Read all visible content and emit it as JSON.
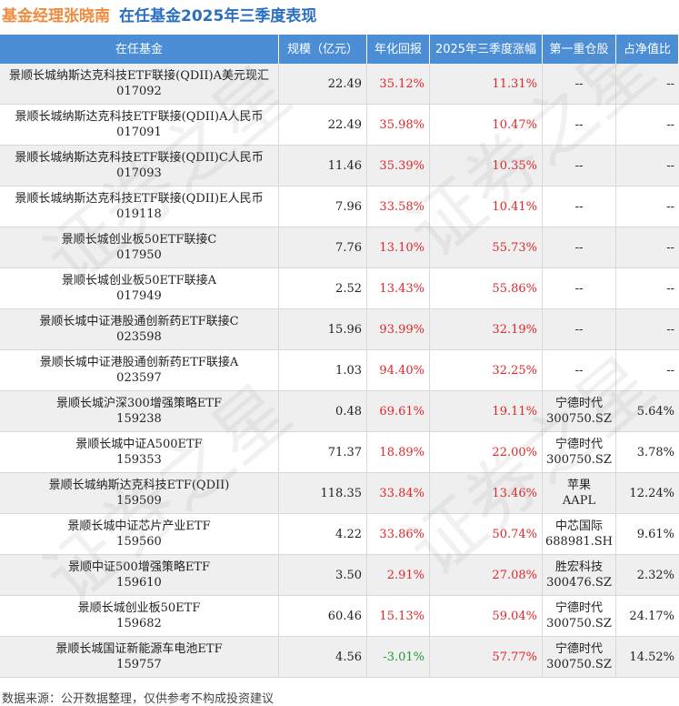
{
  "header": {
    "manager": "基金经理张晓南",
    "title": "在任基金2025年三季度表现"
  },
  "watermark": "证券之星",
  "table": {
    "columns": [
      "在任基金",
      "规模（亿元）",
      "年化回报",
      "2025年三季度涨幅",
      "第一重仓股",
      "占净值比"
    ],
    "rows": [
      {
        "fund": "景顺长城纳斯达克科技ETF联接(QDII)A美元现汇",
        "code": "017092",
        "scale": "22.49",
        "annual_return": "35.12%",
        "q3_change": "11.31%",
        "top_holding": "--",
        "weight": "--"
      },
      {
        "fund": "景顺长城纳斯达克科技ETF联接(QDII)A人民币",
        "code": "017091",
        "scale": "22.49",
        "annual_return": "35.98%",
        "q3_change": "10.47%",
        "top_holding": "--",
        "weight": "--"
      },
      {
        "fund": "景顺长城纳斯达克科技ETF联接(QDII)C人民币",
        "code": "017093",
        "scale": "11.46",
        "annual_return": "35.39%",
        "q3_change": "10.35%",
        "top_holding": "--",
        "weight": "--"
      },
      {
        "fund": "景顺长城纳斯达克科技ETF联接(QDII)E人民币",
        "code": "019118",
        "scale": "7.96",
        "annual_return": "33.58%",
        "q3_change": "10.41%",
        "top_holding": "--",
        "weight": "--"
      },
      {
        "fund": "景顺长城创业板50ETF联接C",
        "code": "017950",
        "scale": "7.76",
        "annual_return": "13.10%",
        "q3_change": "55.73%",
        "top_holding": "--",
        "weight": "--"
      },
      {
        "fund": "景顺长城创业板50ETF联接A",
        "code": "017949",
        "scale": "2.52",
        "annual_return": "13.43%",
        "q3_change": "55.86%",
        "top_holding": "--",
        "weight": "--"
      },
      {
        "fund": "景顺长城中证港股通创新药ETF联接C",
        "code": "023598",
        "scale": "15.96",
        "annual_return": "93.99%",
        "q3_change": "32.19%",
        "top_holding": "--",
        "weight": "--"
      },
      {
        "fund": "景顺长城中证港股通创新药ETF联接A",
        "code": "023597",
        "scale": "1.03",
        "annual_return": "94.40%",
        "q3_change": "32.25%",
        "top_holding": "--",
        "weight": "--"
      },
      {
        "fund": "景顺长城沪深300增强策略ETF",
        "code": "159238",
        "scale": "0.48",
        "annual_return": "69.61%",
        "q3_change": "19.11%",
        "top_holding": [
          "宁德时代",
          "300750.SZ"
        ],
        "weight": "5.64%"
      },
      {
        "fund": "景顺长城中证A500ETF",
        "code": "159353",
        "scale": "71.37",
        "annual_return": "18.89%",
        "q3_change": "22.00%",
        "top_holding": [
          "宁德时代",
          "300750.SZ"
        ],
        "weight": "3.78%"
      },
      {
        "fund": "景顺长城纳斯达克科技ETF(QDII)",
        "code": "159509",
        "scale": "118.35",
        "annual_return": "33.84%",
        "q3_change": "13.46%",
        "top_holding": [
          "苹果",
          "AAPL"
        ],
        "weight": "12.24%"
      },
      {
        "fund": "景顺长城中证芯片产业ETF",
        "code": "159560",
        "scale": "4.22",
        "annual_return": "33.86%",
        "q3_change": "50.74%",
        "top_holding": [
          "中芯国际",
          "688981.SH"
        ],
        "weight": "9.61%"
      },
      {
        "fund": "景顺中证500增强策略ETF",
        "code": "159610",
        "scale": "3.50",
        "annual_return": "2.91%",
        "q3_change": "27.08%",
        "top_holding": [
          "胜宏科技",
          "300476.SZ"
        ],
        "weight": "2.32%"
      },
      {
        "fund": "景顺长城创业板50ETF",
        "code": "159682",
        "scale": "60.46",
        "annual_return": "15.13%",
        "q3_change": "59.04%",
        "top_holding": [
          "宁德时代",
          "300750.SZ"
        ],
        "weight": "24.17%"
      },
      {
        "fund": "景顺长城国证新能源车电池ETF",
        "code": "159757",
        "scale": "4.56",
        "annual_return": "-3.01%",
        "q3_change": "57.77%",
        "top_holding": [
          "宁德时代",
          "300750.SZ"
        ],
        "weight": "14.52%"
      }
    ]
  },
  "footer": "数据来源：公开数据整理，仅供参考不构成投资建议"
}
